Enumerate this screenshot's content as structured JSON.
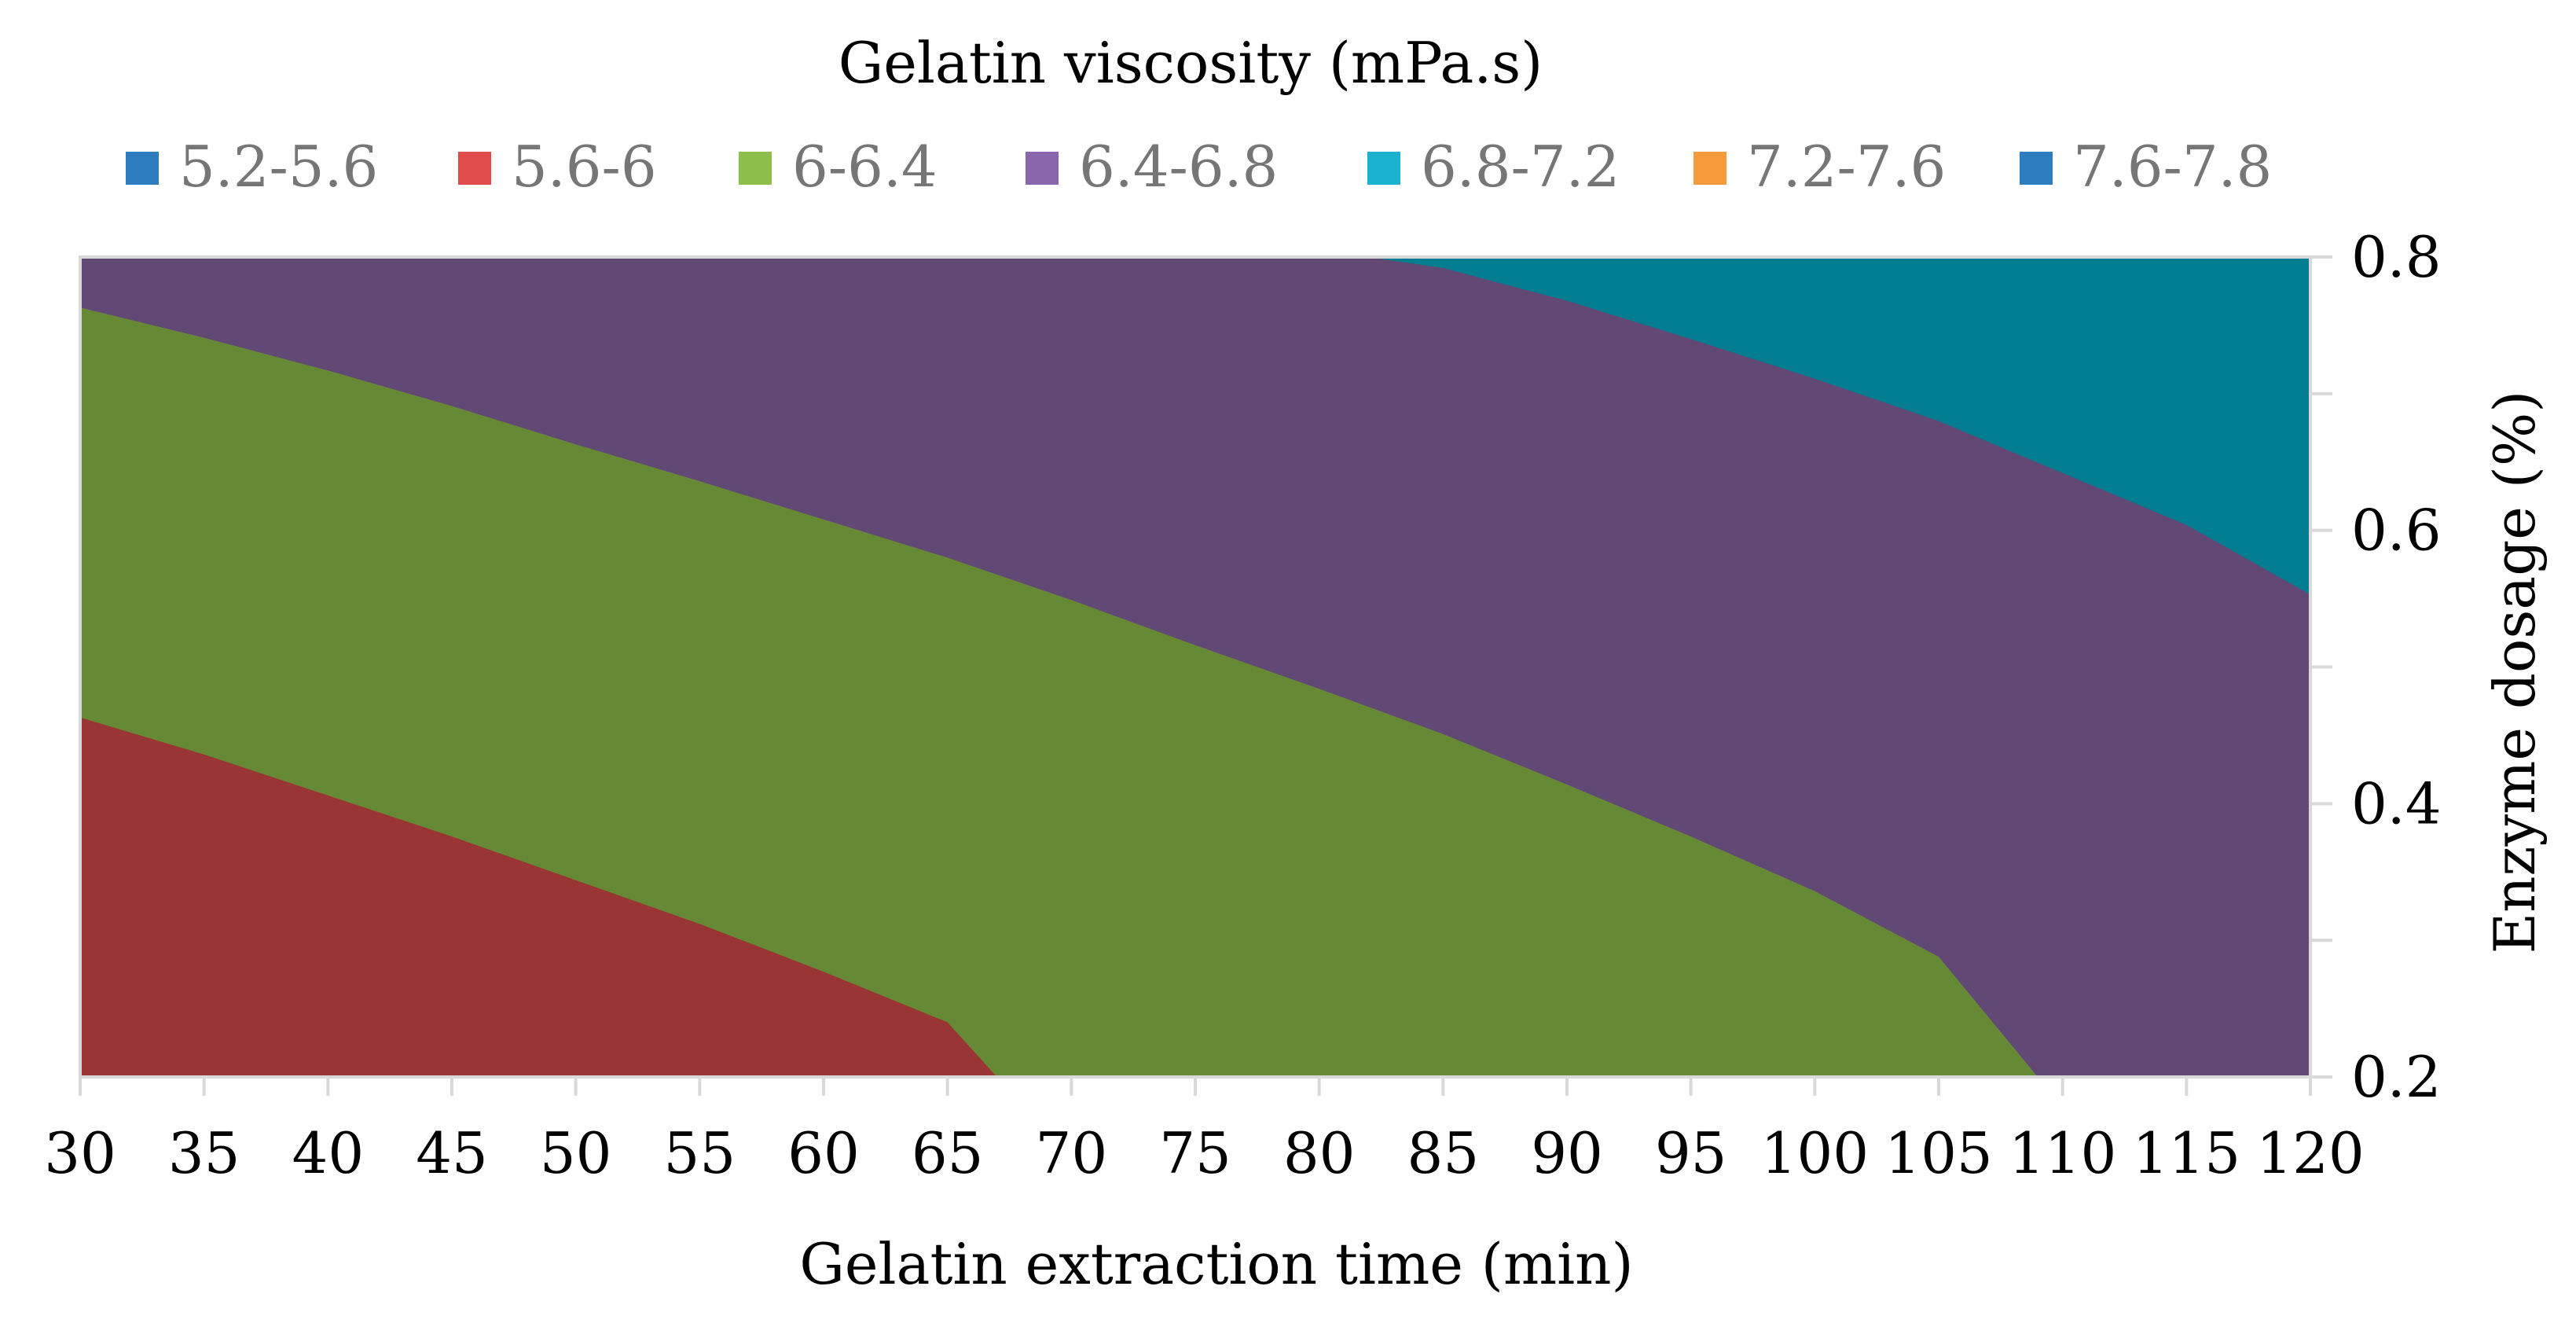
{
  "chart_data": {
    "type": "contour",
    "title": "Gelatin viscosity (mPa.s)",
    "xlabel": "Gelatin extraction time (min)",
    "ylabel": "Enzyme dosage (%)",
    "xlim": [
      30,
      120
    ],
    "ylim": [
      0.2,
      0.8
    ],
    "x_ticks": [
      "30",
      "35",
      "40",
      "45",
      "50",
      "55",
      "60",
      "65",
      "70",
      "75",
      "80",
      "85",
      "90",
      "95",
      "100",
      "105",
      "110",
      "115",
      "120"
    ],
    "y_ticks": [
      "0.2",
      "0.4",
      "0.6",
      "0.8"
    ],
    "y_minor_ticks": [
      0.3,
      0.5,
      0.7
    ],
    "y_axis_position": "right",
    "legend_position": "top",
    "legend": [
      {
        "label": "5.2-5.6",
        "color": "#2e7ebf"
      },
      {
        "label": "5.6-6",
        "color": "#e04b4b"
      },
      {
        "label": "6-6.4",
        "color": "#8ebf4c"
      },
      {
        "label": "6.4-6.8",
        "color": "#8a66ac"
      },
      {
        "label": "6.8-7.2",
        "color": "#1ab2ce"
      },
      {
        "label": "7.2-7.6",
        "color": "#f79a3c"
      },
      {
        "label": "7.6-7.8",
        "color": "#2e7ebf"
      }
    ],
    "regions": [
      {
        "range": "5.6-6",
        "color": "#9a3535"
      },
      {
        "range": "6-6.4",
        "color": "#668935"
      },
      {
        "range": "6.4-6.8",
        "color": "#614875"
      },
      {
        "range": "6.8-7.2",
        "color": "#007d91"
      }
    ],
    "contour_lines": [
      {
        "level": 6.0,
        "points": [
          [
            30,
            0.463
          ],
          [
            35,
            0.436
          ],
          [
            40,
            0.406
          ],
          [
            45,
            0.376
          ],
          [
            50,
            0.344
          ],
          [
            55,
            0.312
          ],
          [
            60,
            0.277
          ],
          [
            65,
            0.24
          ],
          [
            67,
            0.2
          ]
        ]
      },
      {
        "level": 6.4,
        "points": [
          [
            30,
            0.763
          ],
          [
            35,
            0.741
          ],
          [
            40,
            0.717
          ],
          [
            45,
            0.691
          ],
          [
            50,
            0.663
          ],
          [
            55,
            0.636
          ],
          [
            60,
            0.608
          ],
          [
            65,
            0.58
          ],
          [
            70,
            0.549
          ],
          [
            75,
            0.516
          ],
          [
            80,
            0.484
          ],
          [
            85,
            0.451
          ],
          [
            90,
            0.414
          ],
          [
            95,
            0.376
          ],
          [
            100,
            0.336
          ],
          [
            105,
            0.288
          ],
          [
            109,
            0.2
          ]
        ]
      },
      {
        "level": 6.8,
        "points": [
          [
            82,
            0.8
          ],
          [
            85,
            0.792
          ],
          [
            90,
            0.768
          ],
          [
            95,
            0.74
          ],
          [
            100,
            0.711
          ],
          [
            105,
            0.68
          ],
          [
            110,
            0.642
          ],
          [
            115,
            0.604
          ],
          [
            120,
            0.553
          ]
        ]
      }
    ]
  }
}
